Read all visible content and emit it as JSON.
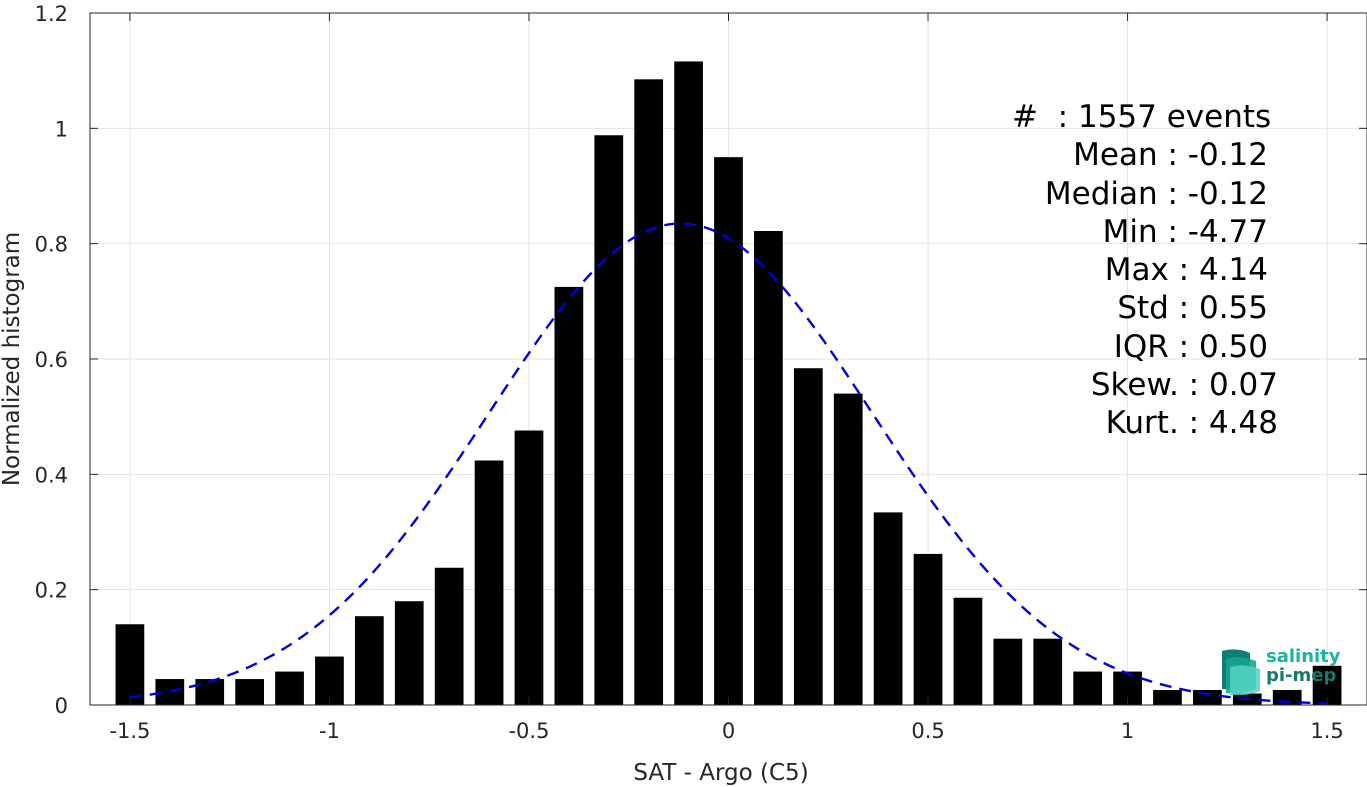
{
  "chart_data": {
    "type": "bar",
    "xlabel": "SAT - Argo (C5)",
    "ylabel": "Normalized histogram",
    "xlim": [
      -1.6,
      1.6
    ],
    "ylim": [
      0,
      1.2
    ],
    "xticks": [
      "-1.5",
      "-1",
      "-0.5",
      "0",
      "0.5",
      "1",
      "1.5"
    ],
    "xtick_values": [
      -1.5,
      -1,
      -0.5,
      0,
      0.5,
      1,
      1.5
    ],
    "yticks": [
      "0",
      "0.2",
      "0.4",
      "0.6",
      "0.8",
      "1",
      "1.2"
    ],
    "ytick_values": [
      0,
      0.2,
      0.4,
      0.6,
      0.8,
      1.0,
      1.2
    ],
    "grid": true,
    "bar_color": "#000000",
    "bars": {
      "x": [
        -1.5,
        -1.4,
        -1.3,
        -1.2,
        -1.1,
        -1.0,
        -0.9,
        -0.8,
        -0.7,
        -0.6,
        -0.5,
        -0.4,
        -0.3,
        -0.2,
        -0.1,
        0.0,
        0.1,
        0.2,
        0.3,
        0.4,
        0.5,
        0.6,
        0.7,
        0.8,
        0.9,
        1.0,
        1.1,
        1.2,
        1.3,
        1.4,
        1.5
      ],
      "values": [
        0.14,
        0.045,
        0.045,
        0.045,
        0.058,
        0.084,
        0.154,
        0.18,
        0.238,
        0.424,
        0.476,
        0.725,
        0.988,
        1.085,
        1.116,
        0.95,
        0.822,
        0.584,
        0.54,
        0.334,
        0.262,
        0.186,
        0.115,
        0.115,
        0.058,
        0.058,
        0.026,
        0.026,
        0.02,
        0.026,
        0.068
      ]
    },
    "fit": {
      "type": "normal",
      "style": "dashed",
      "color": "#0000dd",
      "mean": -0.12,
      "std": 0.48,
      "peak": 0.835,
      "x_range": [
        -1.5,
        1.5
      ]
    }
  },
  "stats": {
    "events": "#  : 1557 events",
    "mean": "Mean : -0.12",
    "median": "Median : -0.12",
    "min": "Min : -4.77",
    "max": "Max : 4.14",
    "std": "Std : 0.55",
    "iqr": "IQR : 0.50",
    "skew": "Skew. : 0.07",
    "kurt": "Kurt. : 4.48"
  },
  "logo": {
    "line1": "salinity",
    "line2": "pi-mep",
    "color1": "#1bb3a0",
    "color2": "#16786e"
  }
}
